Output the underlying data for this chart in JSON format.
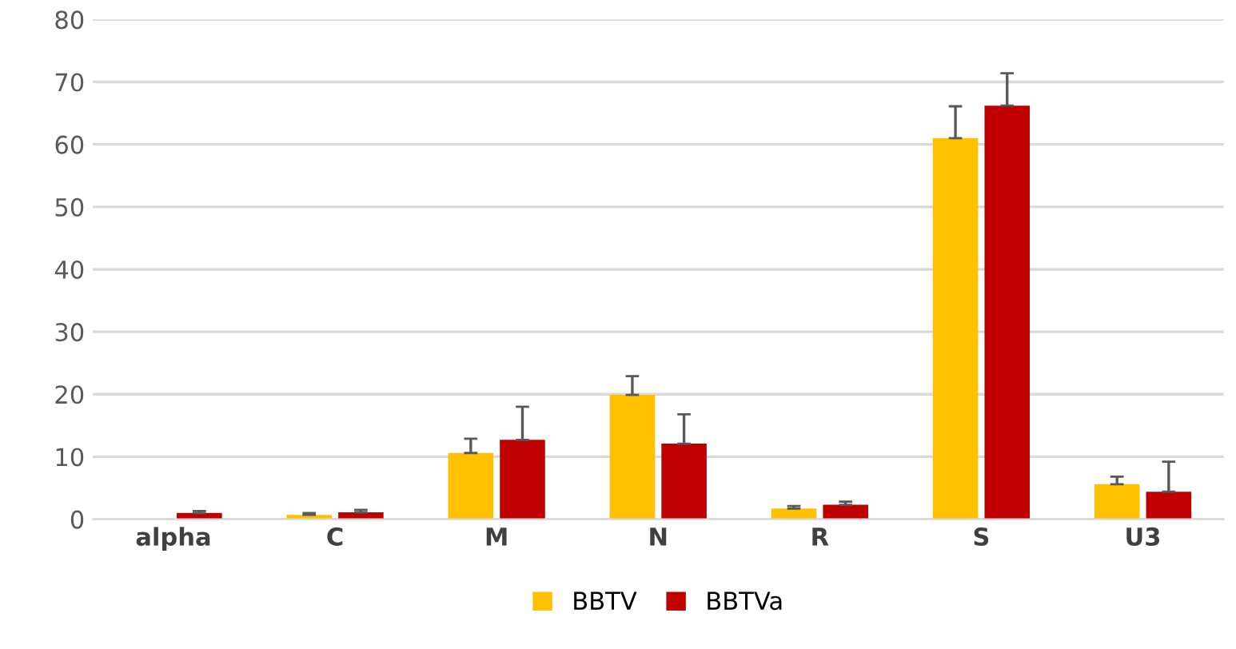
{
  "chart_data": {
    "type": "bar",
    "categories": [
      "alpha",
      "C",
      "M",
      "N",
      "R",
      "S",
      "U3"
    ],
    "series": [
      {
        "name": "BBTV",
        "color": "#ffc000",
        "values": [
          0,
          0.7,
          10.6,
          19.9,
          1.7,
          61.0,
          5.6
        ],
        "errors": [
          null,
          [
            0.7,
            1.0
          ],
          [
            10.6,
            12.9
          ],
          [
            19.9,
            22.9
          ],
          [
            1.7,
            2.1
          ],
          [
            61.0,
            66.1
          ],
          [
            5.6,
            6.8
          ]
        ]
      },
      {
        "name": "BBTVa",
        "color": "#c00000",
        "values": [
          1.0,
          1.1,
          12.7,
          12.1,
          2.3,
          66.2,
          4.4
        ],
        "errors": [
          [
            1.0,
            1.3
          ],
          [
            1.1,
            1.5
          ],
          [
            12.7,
            18.0
          ],
          [
            12.1,
            16.8
          ],
          [
            2.3,
            2.8
          ],
          [
            66.2,
            71.4
          ],
          [
            4.4,
            9.2
          ]
        ]
      }
    ],
    "ylim": [
      0,
      80
    ],
    "yticks": [
      0,
      10,
      20,
      30,
      40,
      50,
      60,
      70,
      80
    ],
    "grid": "y",
    "legend": "bottom"
  }
}
